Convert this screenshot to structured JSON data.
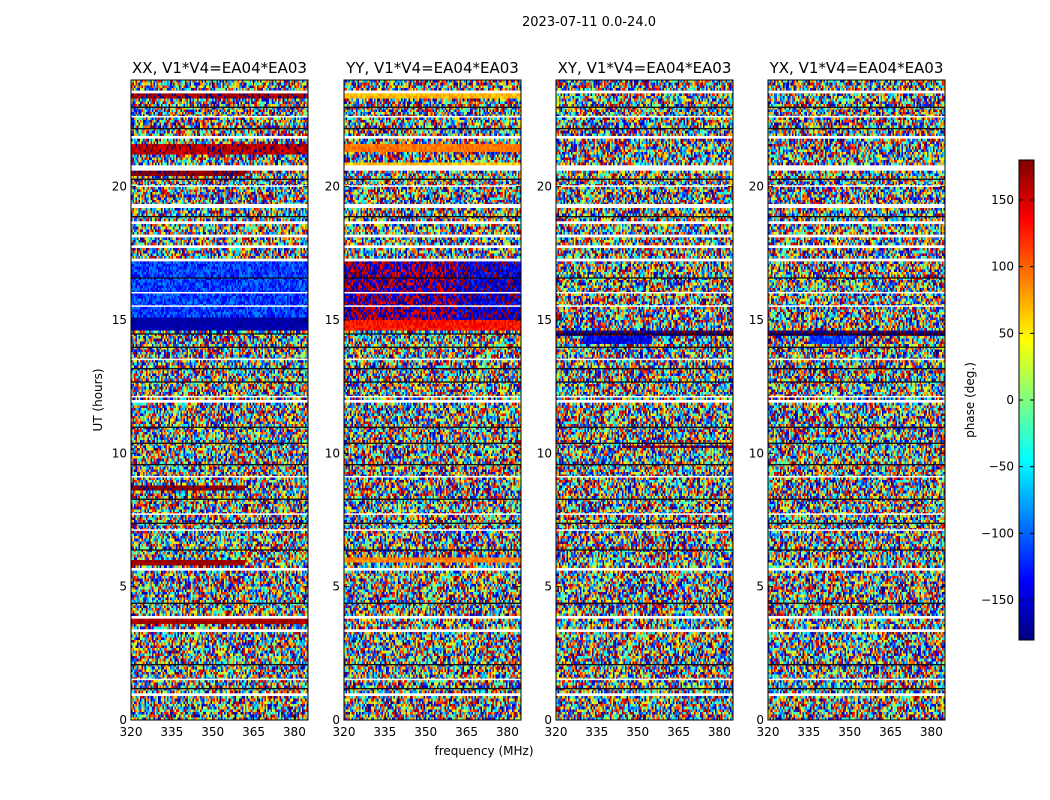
{
  "suptitle": "2023-07-11 0.0-24.0",
  "chart_data": {
    "type": "heatmap",
    "xlabel": "frequency (MHz)",
    "ylabel": "UT (hours)",
    "xlim": [
      320,
      385
    ],
    "ylim": [
      0,
      24
    ],
    "xticks": [
      320,
      335,
      350,
      365,
      380
    ],
    "yticks": [
      0,
      5,
      10,
      15,
      20
    ],
    "colorbar": {
      "label": "phase (deg.)",
      "range": [
        -180,
        180
      ],
      "ticks": [
        150,
        100,
        50,
        0,
        -50,
        -100,
        -150
      ],
      "tick_labels": [
        "150",
        "100",
        "50",
        "0",
        "−50",
        "−100",
        "−150"
      ],
      "colormap": [
        "#00007f",
        "#0000ff",
        "#007fff",
        "#00ffff",
        "#7fff7f",
        "#ffff00",
        "#ff7f00",
        "#ff0000",
        "#7f0000"
      ]
    },
    "panels": [
      {
        "name": "XX",
        "title": "XX, V1*V4=EA04*EA03",
        "features": [
          {
            "hours": [
              14.6,
              17.2
            ],
            "freq": [
              320,
              385
            ],
            "phase": -115,
            "noise": 35,
            "desc": "blue"
          },
          {
            "hours": [
              14.6,
              15.1
            ],
            "freq": [
              320,
              385
            ],
            "phase": -165,
            "noise": 12,
            "desc": "dark blue"
          },
          {
            "hours": [
              8.6,
              8.8
            ],
            "freq": [
              320,
              362
            ],
            "phase": 175,
            "noise": 8,
            "desc": "red"
          },
          {
            "hours": [
              5.8,
              6.0
            ],
            "freq": [
              320,
              362
            ],
            "phase": 170,
            "noise": 8,
            "desc": "red"
          },
          {
            "hours": [
              20.4,
              20.6
            ],
            "freq": [
              320,
              362
            ],
            "phase": 175,
            "noise": 8,
            "desc": "red"
          },
          {
            "hours": [
              21.2,
              21.6
            ],
            "freq": [
              320,
              385
            ],
            "phase": 160,
            "noise": 25,
            "desc": "red"
          },
          {
            "hours": [
              23.3,
              23.5
            ],
            "freq": [
              320,
              385
            ],
            "phase": 170,
            "noise": 20,
            "desc": "red"
          },
          {
            "hours": [
              3.6,
              3.75
            ],
            "freq": [
              320,
              385
            ],
            "phase": 165,
            "noise": 15,
            "desc": "red"
          }
        ]
      },
      {
        "name": "YY",
        "title": "YY, V1*V4=EA04*EA03",
        "features": [
          {
            "hours": [
              15.0,
              17.2
            ],
            "freq": [
              320,
              362
            ],
            "phase": -178,
            "noise": 55,
            "desc": "dark red/blue"
          },
          {
            "hours": [
              15.0,
              17.2
            ],
            "freq": [
              362,
              385
            ],
            "phase": -155,
            "noise": 45,
            "desc": "dark blue/red"
          },
          {
            "hours": [
              14.6,
              15.0
            ],
            "freq": [
              320,
              385
            ],
            "phase": 130,
            "noise": 18,
            "desc": "orange/red"
          },
          {
            "hours": [
              20.6,
              20.9
            ],
            "freq": [
              320,
              385
            ],
            "phase": 65,
            "noise": 18,
            "desc": "yellow"
          },
          {
            "hours": [
              21.3,
              21.6
            ],
            "freq": [
              320,
              385
            ],
            "phase": 95,
            "noise": 15,
            "desc": "orange"
          },
          {
            "hours": [
              5.9,
              6.1
            ],
            "freq": [
              320,
              385
            ],
            "phase": 90,
            "noise": 15,
            "desc": "orange"
          },
          {
            "hours": [
              23.3,
              23.6
            ],
            "freq": [
              320,
              385
            ],
            "phase": 70,
            "noise": 15,
            "desc": "yellow"
          }
        ]
      },
      {
        "name": "XY",
        "title": "XY, V1*V4=EA04*EA03",
        "features": [
          {
            "hours": [
              14.1,
              14.5
            ],
            "freq": [
              330,
              355
            ],
            "phase": -140,
            "noise": 30,
            "desc": "blue"
          },
          {
            "hours": [
              14.4,
              14.6
            ],
            "freq": [
              320,
              385
            ],
            "phase": -175,
            "noise": 20,
            "desc": "dark"
          },
          {
            "hours": [
              10.2,
              10.3
            ],
            "freq": [
              345,
              385
            ],
            "phase": 175,
            "noise": 20,
            "desc": "red"
          }
        ]
      },
      {
        "name": "YX",
        "title": "YX, V1*V4=EA04*EA03",
        "features": [
          {
            "hours": [
              14.1,
              14.4
            ],
            "freq": [
              335,
              352
            ],
            "phase": -110,
            "noise": 30,
            "desc": "blue"
          },
          {
            "hours": [
              14.4,
              14.6
            ],
            "freq": [
              320,
              385
            ],
            "phase": -175,
            "noise": 20,
            "desc": "dark"
          }
        ]
      }
    ],
    "flagged_hours": [
      [
        0.9,
        1.0
      ],
      [
        1.5,
        1.55
      ],
      [
        3.3,
        3.4
      ],
      [
        3.8,
        3.9
      ],
      [
        5.6,
        5.7
      ],
      [
        7.1,
        7.15
      ],
      [
        7.7,
        7.75
      ],
      [
        9.1,
        9.15
      ],
      [
        11.9,
        12.0
      ],
      [
        12.1,
        12.15
      ],
      [
        13.5,
        13.55
      ],
      [
        15.5,
        15.55
      ],
      [
        16.0,
        16.05
      ],
      [
        17.2,
        17.3
      ],
      [
        17.7,
        17.8
      ],
      [
        18.1,
        18.2
      ],
      [
        18.6,
        18.7
      ],
      [
        19.2,
        19.35
      ],
      [
        20.0,
        20.05
      ],
      [
        20.6,
        20.8
      ],
      [
        21.8,
        21.9
      ],
      [
        22.6,
        22.65
      ],
      [
        23.5,
        23.6
      ]
    ],
    "dark_lines_hours": [
      1.2,
      2.1,
      4.4,
      6.4,
      7.4,
      8.3,
      9.6,
      10.4,
      11.0,
      12.7,
      13.2,
      14.0,
      14.5,
      16.6,
      18.9,
      20.3,
      22.2,
      23.0
    ]
  }
}
